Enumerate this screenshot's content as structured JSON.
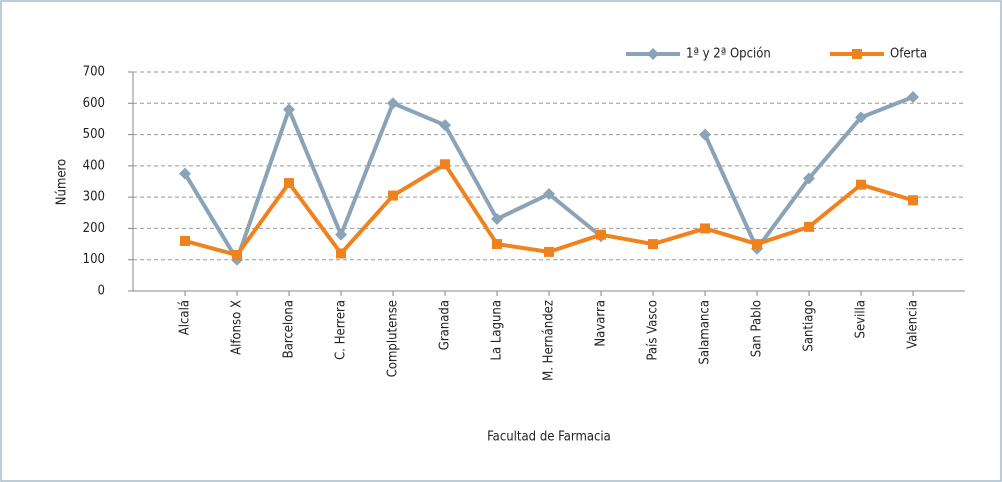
{
  "chart_data": {
    "type": "line",
    "categories": [
      "Alcalá",
      "Alfonso X",
      "Barcelona",
      "C. Herrera",
      "Complutense",
      "Granada",
      "La Laguna",
      "M. Hernández",
      "Navarra",
      "País Vasco",
      "Salamanca",
      "San Pablo",
      "Santiago",
      "Sevilla",
      "Valencia"
    ],
    "series": [
      {
        "name": "1ª y 2ª Opción",
        "color": "#8aa3b6",
        "values": [
          375,
          100,
          580,
          180,
          600,
          530,
          230,
          310,
          175,
          null,
          500,
          135,
          360,
          555,
          620
        ]
      },
      {
        "name": "Oferta",
        "color": "#f0821e",
        "values": [
          160,
          115,
          345,
          120,
          305,
          405,
          150,
          125,
          180,
          150,
          200,
          150,
          205,
          340,
          290
        ]
      }
    ],
    "ylim": [
      0,
      700
    ],
    "yticks": [
      0,
      100,
      200,
      300,
      400,
      500,
      600,
      700
    ],
    "ylabel": "Número",
    "xlabel": "Facultad de Farmacia",
    "grid": true,
    "legend": "top-right"
  }
}
